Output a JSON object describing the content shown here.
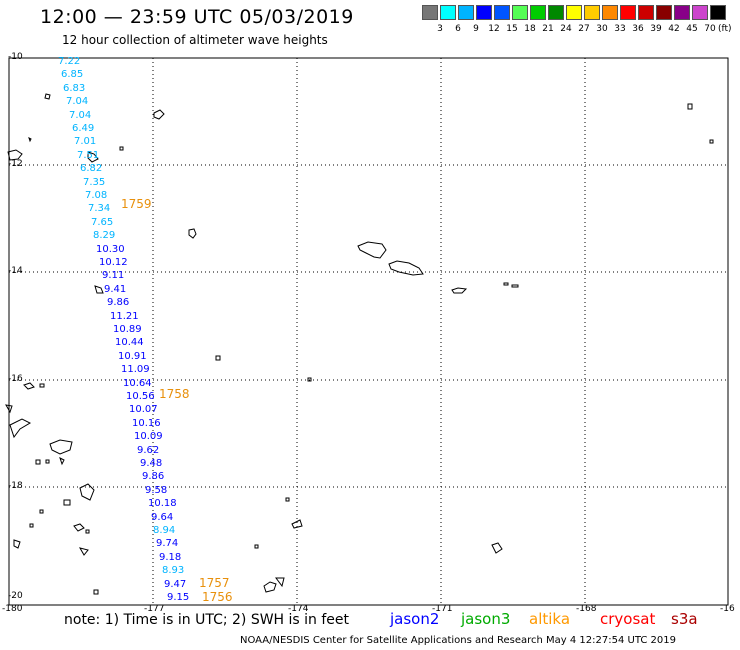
{
  "title": "12:00 — 23:59 UTC 05/03/2019",
  "subtitle": "12 hour collection of altimeter wave heights",
  "colorbar": {
    "colors": [
      "#777777",
      "#00ffff",
      "#00b4ff",
      "#0000ff",
      "#0055ff",
      "#55ff55",
      "#00cc00",
      "#008800",
      "#ffff00",
      "#ffcc00",
      "#ff8800",
      "#ff0000",
      "#cc0000",
      "#880000",
      "#880088",
      "#cc44cc",
      "#000000"
    ],
    "labels": [
      "3",
      "6",
      "9",
      "12",
      "15",
      "18",
      "21",
      "24",
      "27",
      "30",
      "33",
      "36",
      "39",
      "42",
      "45",
      "70"
    ],
    "unit": "(ft)"
  },
  "map": {
    "lat_labels": [
      "-10",
      "-12",
      "-14",
      "-16",
      "-18",
      "-20"
    ],
    "lon_labels": [
      "-180",
      "-177",
      "-174",
      "-171",
      "-168",
      "-16"
    ],
    "measurements": [
      {
        "text": "7.22",
        "color": "#00b4ff"
      },
      {
        "text": "6.85",
        "color": "#00b4ff"
      },
      {
        "text": "6.83",
        "color": "#00b4ff"
      },
      {
        "text": "7.04",
        "color": "#00b4ff"
      },
      {
        "text": "7.04",
        "color": "#00b4ff"
      },
      {
        "text": "6.49",
        "color": "#00b4ff"
      },
      {
        "text": "7.01",
        "color": "#00b4ff"
      },
      {
        "text": "7.51",
        "color": "#00b4ff"
      },
      {
        "text": "6.82",
        "color": "#00b4ff"
      },
      {
        "text": "7.35",
        "color": "#00b4ff"
      },
      {
        "text": "7.08",
        "color": "#00b4ff"
      },
      {
        "text": "7.34",
        "color": "#00b4ff"
      },
      {
        "text": "7.65",
        "color": "#00b4ff"
      },
      {
        "text": "8.29",
        "color": "#00b4ff"
      },
      {
        "text": "10.30",
        "color": "#0000ff"
      },
      {
        "text": "10.12",
        "color": "#0000ff"
      },
      {
        "text": "9.11",
        "color": "#0000ff"
      },
      {
        "text": "9.41",
        "color": "#0000ff"
      },
      {
        "text": "9.86",
        "color": "#0000ff"
      },
      {
        "text": "11.21",
        "color": "#0000ff"
      },
      {
        "text": "10.89",
        "color": "#0000ff"
      },
      {
        "text": "10.44",
        "color": "#0000ff"
      },
      {
        "text": "10.91",
        "color": "#0000ff"
      },
      {
        "text": "11.09",
        "color": "#0000ff"
      },
      {
        "text": "10.64",
        "color": "#0000ff"
      },
      {
        "text": "10.56",
        "color": "#0000ff"
      },
      {
        "text": "10.07",
        "color": "#0000ff"
      },
      {
        "text": "10.16",
        "color": "#0000ff"
      },
      {
        "text": "10.09",
        "color": "#0000ff"
      },
      {
        "text": "9.62",
        "color": "#0000ff"
      },
      {
        "text": "9.48",
        "color": "#0000ff"
      },
      {
        "text": "9.86",
        "color": "#0000ff"
      },
      {
        "text": "9.58",
        "color": "#0000ff"
      },
      {
        "text": "10.18",
        "color": "#0000ff"
      },
      {
        "text": "9.64",
        "color": "#0000ff"
      },
      {
        "text": "8.94",
        "color": "#00b4ff"
      },
      {
        "text": "9.74",
        "color": "#0000ff"
      },
      {
        "text": "9.18",
        "color": "#0000ff"
      },
      {
        "text": "8.93",
        "color": "#00b4ff"
      },
      {
        "text": "9.47",
        "color": "#0000ff"
      },
      {
        "text": "9.15",
        "color": "#0000ff"
      }
    ],
    "timestamps": [
      "1759",
      "1758",
      "1757",
      "1756"
    ]
  },
  "note": "note: 1) Time is in UTC; 2) SWH is in feet",
  "legend": [
    {
      "name": "jason2",
      "color": "#0000ff"
    },
    {
      "name": "jason3",
      "color": "#00aa00"
    },
    {
      "name": "altika",
      "color": "#ff9900"
    },
    {
      "name": "cryosat",
      "color": "#ff0000"
    },
    {
      "name": "s3a",
      "color": "#aa0000"
    }
  ],
  "footer": "NOAA/NESDIS Center for Satellite Applications and Research    May  4 12:27:54 UTC 2019"
}
